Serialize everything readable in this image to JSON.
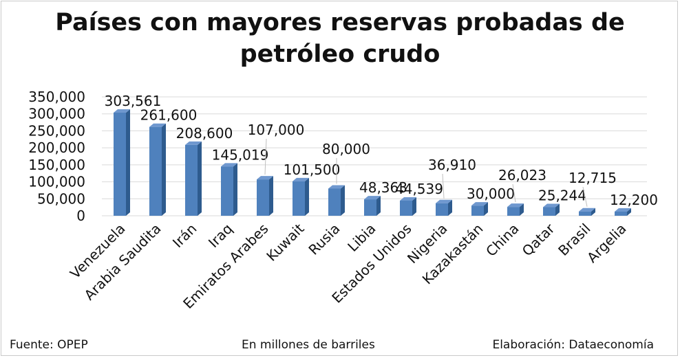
{
  "chart_data": {
    "type": "bar",
    "title_lines": [
      "Países con mayores reservas probadas de",
      "petróleo crudo"
    ],
    "categories": [
      "Venezuela",
      "Arabia Saudita",
      "Irán",
      "Iraq",
      "Emiratos Arabes",
      "Kuwait",
      "Rusia",
      "Libia",
      "Estados Unidos",
      "Nigeria",
      "Kazakastán",
      "China",
      "Qatar",
      "Brasil",
      "Argelia"
    ],
    "values": [
      303561,
      261600,
      208600,
      145019,
      107000,
      101500,
      80000,
      48363,
      44539,
      36910,
      30000,
      26023,
      25244,
      12715,
      12200
    ],
    "value_labels": [
      "303,561",
      "261,600",
      "208,600",
      "145,019",
      "107,000",
      "101,500",
      "80,000",
      "48,363",
      "44,539",
      "36,910",
      "30,000",
      "26,023",
      "25,244",
      "12,715",
      "12,200"
    ],
    "ylim": [
      0,
      350000
    ],
    "yticks": [
      0,
      50000,
      100000,
      150000,
      200000,
      250000,
      300000,
      350000
    ],
    "ytick_labels": [
      "0",
      "50,000",
      "100,000",
      "150,000",
      "200,000",
      "250,000",
      "300,000",
      "350,000"
    ],
    "grid": true,
    "bar_color": "#4f81bd",
    "bar_side_color": "#2e5b8e",
    "bar_top_color": "#6f98cf"
  },
  "footer": {
    "source": "Fuente: OPEP",
    "units": "En millones de barriles",
    "credit": "Elaboración: Dataeconomía"
  }
}
